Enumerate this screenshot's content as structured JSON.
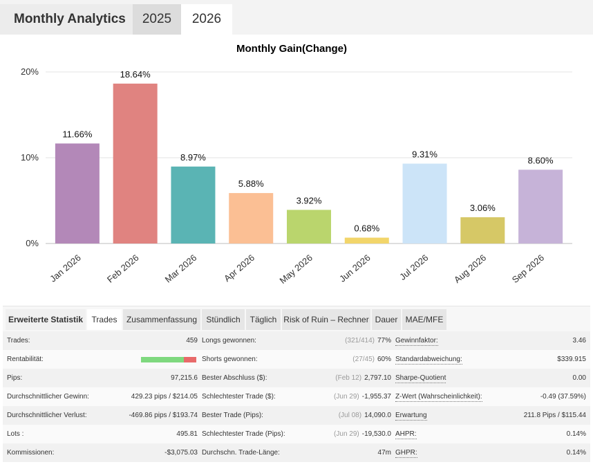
{
  "header": {
    "title": "Monthly Analytics",
    "years": [
      "2025",
      "2026"
    ],
    "active_year": "2026"
  },
  "chart_data": {
    "type": "bar",
    "title": "Monthly Gain(Change)",
    "categories": [
      "Jan 2026",
      "Feb 2026",
      "Mar 2026",
      "Apr 2026",
      "May 2026",
      "Jun 2026",
      "Jul 2026",
      "Aug 2026",
      "Sep 2026"
    ],
    "values": [
      11.66,
      18.64,
      8.97,
      5.88,
      3.92,
      0.68,
      9.31,
      3.06,
      8.6
    ],
    "value_labels": [
      "11.66%",
      "18.64%",
      "8.97%",
      "5.88%",
      "3.92%",
      "0.68%",
      "9.31%",
      "3.06%",
      "8.60%"
    ],
    "colors": [
      "#b388b8",
      "#e08380",
      "#5ab4b4",
      "#fbbf94",
      "#bad56d",
      "#f2d56a",
      "#cce4f8",
      "#d6c866",
      "#c6b3d8"
    ],
    "yticks": [
      "0%",
      "10%",
      "20%"
    ],
    "ytick_values": [
      0,
      10,
      20
    ],
    "ylim": [
      0,
      20
    ],
    "grid": true
  },
  "stats": {
    "tabs": [
      "Erweiterte Statistik",
      "Trades",
      "Zusammenfassung",
      "Stündlich",
      "Täglich",
      "Risk of Ruin – Rechner",
      "Dauer",
      "MAE/MFE"
    ],
    "active_tab": "Trades",
    "profitability_win_fraction": 0.77,
    "rows": [
      {
        "l1": "Trades:",
        "v1": "459",
        "l2": "Longs gewonnen:",
        "m2": "(321/414)",
        "v2": "77%",
        "l3": "Gewinnfaktor:",
        "v3": "3.46"
      },
      {
        "l1": "Rentabilität:",
        "v1": "",
        "l2": "Shorts gewonnen:",
        "m2": "(27/45)",
        "v2": "60%",
        "l3": "Standardabweichung:",
        "v3": "$339.915"
      },
      {
        "l1": "Pips:",
        "v1": "97,215.6",
        "l2": "Bester Abschluss ($):",
        "m2": "(Feb 12)",
        "v2": "2,797.10",
        "l3": "Sharpe-Quotient",
        "v3": "0.00"
      },
      {
        "l1": "Durchschnittlicher Gewinn:",
        "v1": "429.23 pips / $214.05",
        "l2": "Schlechtester Trade ($):",
        "m2": "(Jun 29)",
        "v2": "-1,955.37",
        "l3": "Z-Wert (Wahrscheinlichkeit):",
        "v3": "-0.49 (37.59%)"
      },
      {
        "l1": "Durchschnittlicher Verlust:",
        "v1": "-469.86 pips / $193.74",
        "l2": "Bester Trade (Pips):",
        "m2": "(Jul 08)",
        "v2": "14,090.0",
        "l3": "Erwartung",
        "v3": "211.8 Pips / $115.44"
      },
      {
        "l1": "Lots :",
        "v1": "495.81",
        "l2": "Schlechtester Trade (Pips):",
        "m2": "(Jun 29)",
        "v2": "-19,530.0",
        "l3": "AHPR:",
        "v3": "0.14%"
      },
      {
        "l1": "Kommissionen:",
        "v1": "-$3,075.03",
        "l2": "Durchschn. Trade-Länge:",
        "m2": "",
        "v2": "47m",
        "l3": "GHPR:",
        "v3": "0.14%"
      }
    ]
  }
}
